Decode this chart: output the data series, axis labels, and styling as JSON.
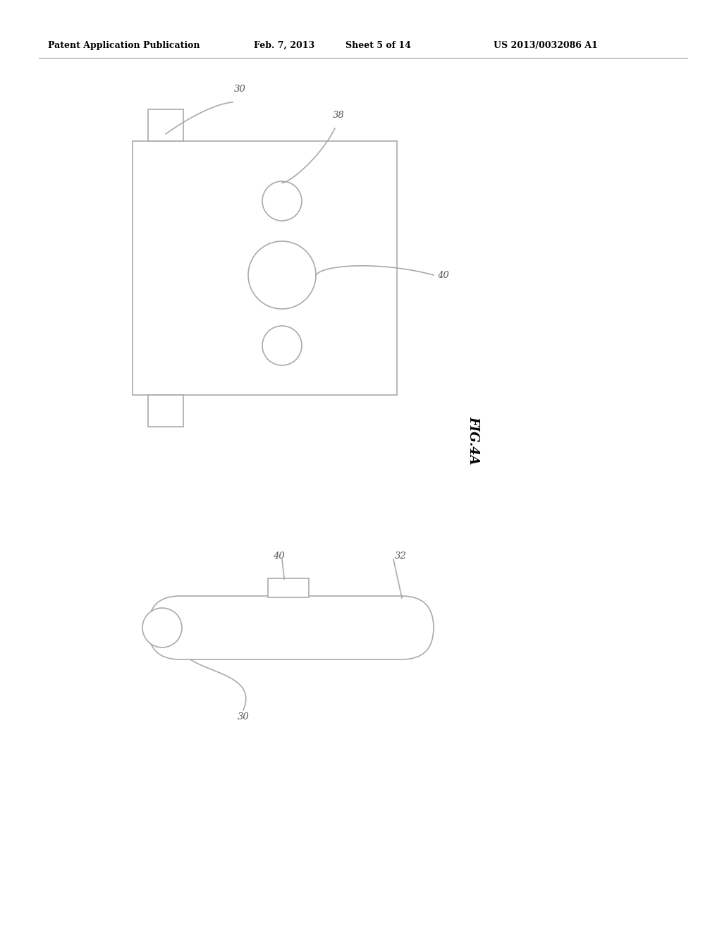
{
  "bg_color": "#ffffff",
  "header_text": "Patent Application Publication",
  "header_date": "Feb. 7, 2013",
  "header_sheet": "Sheet 5 of 14",
  "header_patent": "US 2013/0032086 A1",
  "fig_label": "FIG.4A",
  "line_color": "#aaaaaa",
  "text_color": "#000000",
  "label_color": "#555555",
  "font_size_label": 9.5,
  "font_size_header": 9,
  "font_size_fig": 13
}
